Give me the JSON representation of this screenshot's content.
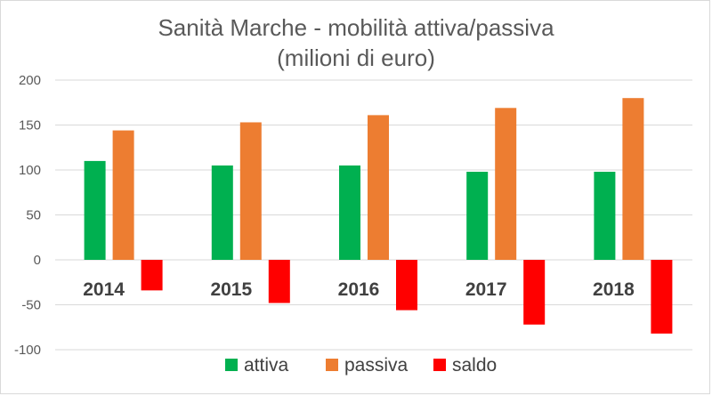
{
  "chart_data": {
    "type": "bar",
    "title": "Sanità Marche - mobilità attiva/passiva",
    "subtitle": "(milioni di euro)",
    "xlabel": "",
    "ylabel": "",
    "categories": [
      "2014",
      "2015",
      "2016",
      "2017",
      "2018"
    ],
    "series": [
      {
        "name": "attiva",
        "color": "#00b050",
        "values": [
          110,
          105,
          105,
          98,
          98
        ]
      },
      {
        "name": "passiva",
        "color": "#ed7d31",
        "values": [
          144,
          153,
          161,
          169,
          180
        ]
      },
      {
        "name": "saldo",
        "color": "#ff0000",
        "values": [
          -34,
          -48,
          -56,
          -72,
          -82
        ]
      }
    ],
    "ylim": [
      -100,
      200
    ],
    "yticks": [
      "200",
      "150",
      "100",
      "50",
      "0",
      "-50",
      "-100"
    ],
    "ytick_values": [
      200,
      150,
      100,
      50,
      0,
      -50,
      -100
    ],
    "grid": true,
    "legend_position": "bottom",
    "grid_color": "#d9d9d9"
  }
}
